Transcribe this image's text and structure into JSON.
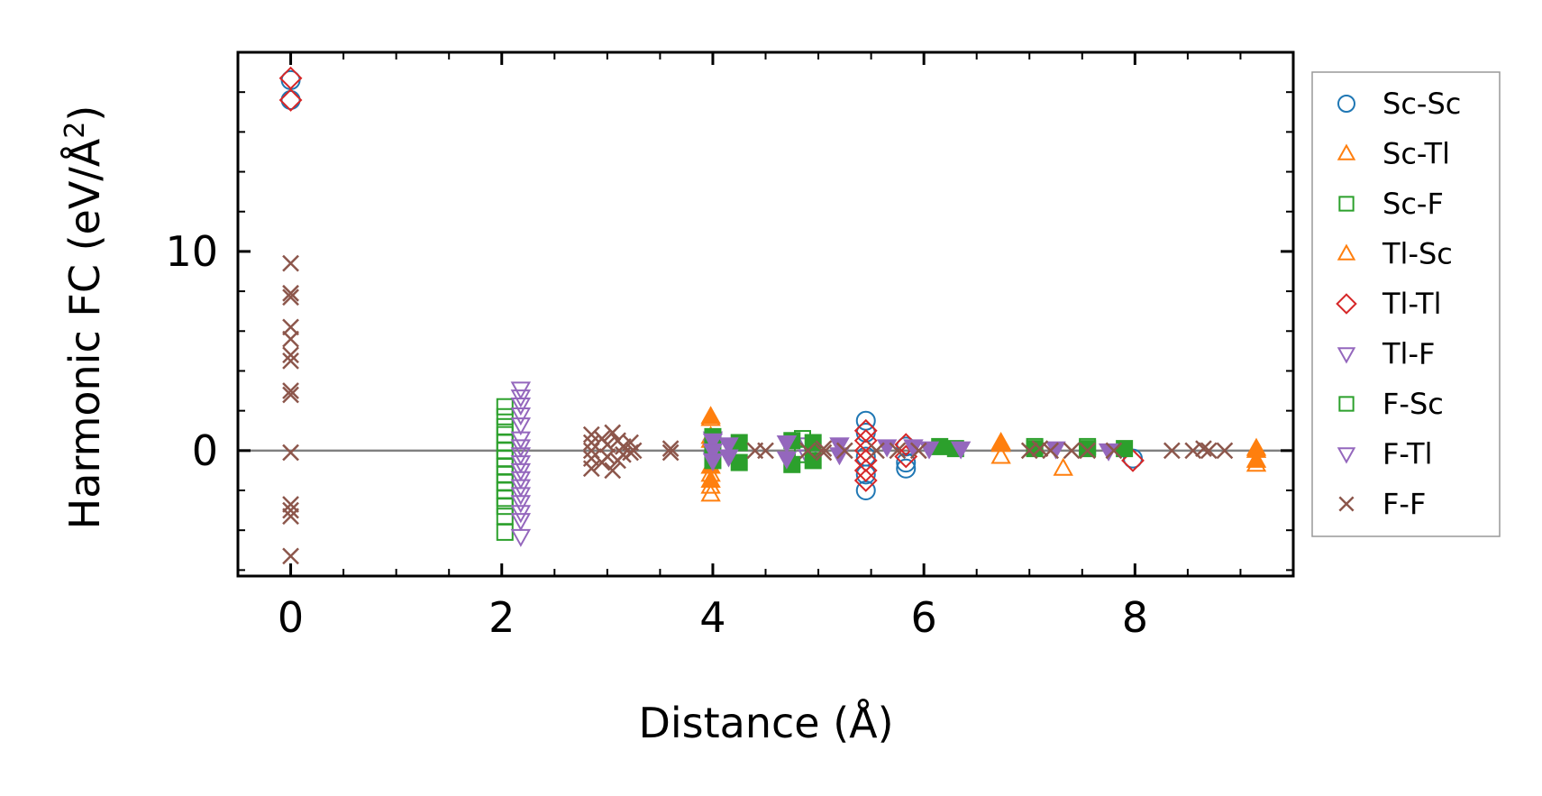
{
  "chart_data": {
    "type": "scatter",
    "title": "",
    "xlabel": "Distance (Å)",
    "ylabel": "Harmonic FC (eV/Å²)",
    "ylabel_main": "Harmonic FC (eV/Å",
    "ylabel_sup": "2",
    "ylabel_end": ")",
    "xlim": [
      -0.5,
      9.5
    ],
    "ylim": [
      -6.3,
      20
    ],
    "xticks": [
      0,
      2,
      4,
      6,
      8
    ],
    "xtick_labels": [
      "0",
      "2",
      "4",
      "6",
      "8"
    ],
    "yticks": [
      0,
      10
    ],
    "ytick_labels": [
      "0",
      "10"
    ],
    "x_minor_step": 0.5,
    "y_minor_step": 2,
    "reference_line_y": 0,
    "grid": false,
    "legend_position": "outside-right",
    "series": [
      {
        "name": "Sc-Sc",
        "marker": "circle",
        "color": "#1f77b4",
        "filled": false,
        "points": [
          [
            0,
            18.6
          ],
          [
            0,
            17.6
          ],
          [
            5.45,
            1.5
          ],
          [
            5.45,
            0.9
          ],
          [
            5.45,
            -0.3
          ],
          [
            5.45,
            -1.2
          ],
          [
            5.45,
            -2.0
          ],
          [
            5.83,
            0.2
          ],
          [
            5.83,
            -0.6
          ],
          [
            5.83,
            -0.9
          ],
          [
            7.98,
            -0.4
          ]
        ]
      },
      {
        "name": "Sc-Tl",
        "marker": "triangle-up",
        "color": "#ff7f0e",
        "filled": false,
        "points": [
          [
            3.98,
            1.6
          ],
          [
            3.98,
            0.5
          ],
          [
            3.98,
            -1.2
          ],
          [
            3.98,
            -1.8
          ],
          [
            3.98,
            -2.2
          ],
          [
            6.73,
            0.3
          ],
          [
            6.73,
            -0.3
          ],
          [
            7.32,
            -0.9
          ],
          [
            9.15,
            0.1
          ],
          [
            9.15,
            -0.7
          ]
        ]
      },
      {
        "name": "Sc-F",
        "marker": "square",
        "color": "#2ca02c",
        "filled": false,
        "points": [
          [
            2.03,
            2.2
          ],
          [
            2.03,
            1.7
          ],
          [
            2.03,
            1.2
          ],
          [
            2.03,
            0.8
          ],
          [
            2.03,
            0.4
          ],
          [
            2.03,
            0.0
          ],
          [
            2.03,
            -0.4
          ],
          [
            2.03,
            -0.8
          ],
          [
            2.03,
            -1.2
          ],
          [
            2.03,
            -1.6
          ],
          [
            2.03,
            -2.0
          ],
          [
            2.03,
            -2.4
          ],
          [
            2.03,
            -2.8
          ],
          [
            2.03,
            -3.3
          ],
          [
            2.03,
            -4.1
          ],
          [
            4.85,
            0.6
          ],
          [
            4.85,
            -0.2
          ],
          [
            7.05,
            0.2
          ],
          [
            7.55,
            0.2
          ]
        ]
      },
      {
        "name": "Tl-Sc",
        "marker": "triangle-up",
        "color": "#ff7f0e",
        "filled": true,
        "points": [
          [
            3.98,
            1.7
          ],
          [
            3.98,
            0.7
          ],
          [
            3.98,
            -0.8
          ],
          [
            3.98,
            -1.5
          ],
          [
            6.73,
            0.4
          ],
          [
            9.15,
            0.0
          ],
          [
            9.15,
            -0.5
          ]
        ]
      },
      {
        "name": "Tl-Tl",
        "marker": "diamond",
        "color": "#d62728",
        "filled": false,
        "points": [
          [
            0,
            18.7
          ],
          [
            0,
            17.6
          ],
          [
            5.45,
            1.0
          ],
          [
            5.45,
            0.5
          ],
          [
            5.45,
            0.0
          ],
          [
            5.45,
            -0.5
          ],
          [
            5.45,
            -1.0
          ],
          [
            5.45,
            -1.5
          ],
          [
            5.83,
            0.3
          ],
          [
            5.83,
            -0.3
          ],
          [
            7.98,
            -0.5
          ]
        ]
      },
      {
        "name": "Tl-F",
        "marker": "triangle-down",
        "color": "#9467bd",
        "filled": false,
        "points": [
          [
            2.18,
            3.1
          ],
          [
            2.18,
            2.7
          ],
          [
            2.18,
            2.3
          ],
          [
            2.18,
            1.8
          ],
          [
            2.18,
            1.3
          ],
          [
            2.18,
            0.6
          ],
          [
            2.18,
            0.2
          ],
          [
            2.18,
            -0.2
          ],
          [
            2.18,
            -0.6
          ],
          [
            2.18,
            -1.0
          ],
          [
            2.18,
            -1.4
          ],
          [
            2.18,
            -1.8
          ],
          [
            2.18,
            -2.2
          ],
          [
            2.18,
            -2.6
          ],
          [
            2.18,
            -3.1
          ],
          [
            2.18,
            -3.5
          ],
          [
            2.18,
            -4.3
          ],
          [
            4.0,
            0.6
          ],
          [
            4.0,
            0.2
          ],
          [
            4.0,
            -0.4
          ],
          [
            4.9,
            0.3
          ],
          [
            4.9,
            -0.3
          ]
        ]
      },
      {
        "name": "F-Sc",
        "marker": "square",
        "color": "#2ca02c",
        "filled": true,
        "points": [
          [
            4.0,
            0.7
          ],
          [
            4.0,
            0.2
          ],
          [
            4.0,
            -0.5
          ],
          [
            4.25,
            0.4
          ],
          [
            4.25,
            -0.6
          ],
          [
            4.75,
            0.5
          ],
          [
            4.75,
            -0.7
          ],
          [
            4.95,
            0.4
          ],
          [
            4.95,
            -0.5
          ],
          [
            6.15,
            0.2
          ],
          [
            6.3,
            0.1
          ],
          [
            7.05,
            0.1
          ],
          [
            7.55,
            0.1
          ],
          [
            7.9,
            0.1
          ]
        ]
      },
      {
        "name": "F-Tl",
        "marker": "triangle-down",
        "color": "#9467bd",
        "filled": true,
        "points": [
          [
            4.0,
            0.5
          ],
          [
            4.0,
            0.0
          ],
          [
            4.0,
            -0.5
          ],
          [
            4.15,
            0.3
          ],
          [
            4.15,
            -0.3
          ],
          [
            4.7,
            0.4
          ],
          [
            4.7,
            -0.4
          ],
          [
            5.2,
            0.3
          ],
          [
            5.2,
            -0.2
          ],
          [
            5.65,
            0.2
          ],
          [
            5.9,
            0.2
          ],
          [
            6.05,
            0.1
          ],
          [
            6.35,
            0.1
          ],
          [
            7.25,
            0.1
          ],
          [
            7.75,
            0.0
          ]
        ]
      },
      {
        "name": "F-F",
        "marker": "x",
        "color": "#8c564b",
        "filled": false,
        "points": [
          [
            0,
            9.4
          ],
          [
            0,
            7.9
          ],
          [
            0,
            7.7
          ],
          [
            0,
            6.2
          ],
          [
            0,
            5.6
          ],
          [
            0,
            4.8
          ],
          [
            0,
            4.5
          ],
          [
            0,
            3.0
          ],
          [
            0,
            2.8
          ],
          [
            0,
            -0.1
          ],
          [
            0,
            -2.7
          ],
          [
            0,
            -3.0
          ],
          [
            0,
            -3.3
          ],
          [
            0,
            -5.3
          ],
          [
            2.85,
            0.8
          ],
          [
            2.85,
            0.4
          ],
          [
            2.85,
            0.0
          ],
          [
            2.85,
            -0.4
          ],
          [
            2.85,
            -0.9
          ],
          [
            2.95,
            0.6
          ],
          [
            2.95,
            -0.6
          ],
          [
            3.0,
            0.3
          ],
          [
            3.0,
            -0.3
          ],
          [
            3.05,
            0.9
          ],
          [
            3.05,
            -1.0
          ],
          [
            3.1,
            0.5
          ],
          [
            3.1,
            -0.5
          ],
          [
            3.15,
            0.2
          ],
          [
            3.15,
            -0.2
          ],
          [
            3.22,
            0.4
          ],
          [
            3.22,
            -0.1
          ],
          [
            3.25,
            0.0
          ],
          [
            3.6,
            0.1
          ],
          [
            3.6,
            -0.1
          ],
          [
            4.4,
            0.0
          ],
          [
            4.5,
            0.0
          ],
          [
            4.9,
            0.0
          ],
          [
            5.05,
            0.1
          ],
          [
            5.05,
            -0.1
          ],
          [
            5.25,
            0.0
          ],
          [
            5.55,
            0.0
          ],
          [
            5.75,
            0.0
          ],
          [
            5.95,
            0.0
          ],
          [
            7.0,
            0.0
          ],
          [
            7.1,
            0.1
          ],
          [
            7.2,
            0.0
          ],
          [
            7.4,
            0.0
          ],
          [
            7.55,
            0.0
          ],
          [
            7.8,
            0.0
          ],
          [
            8.35,
            0.0
          ],
          [
            8.55,
            0.0
          ],
          [
            8.65,
            0.1
          ],
          [
            8.7,
            0.0
          ],
          [
            8.85,
            0.0
          ]
        ]
      }
    ]
  }
}
